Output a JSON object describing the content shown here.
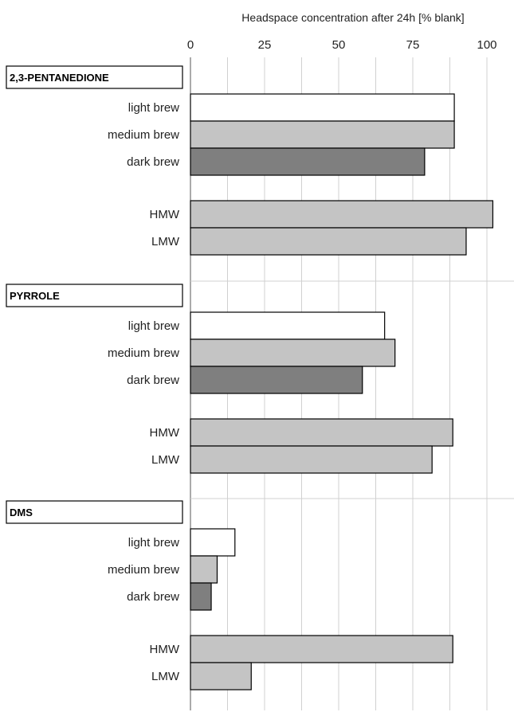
{
  "chart_data": {
    "type": "bar",
    "orientation": "horizontal",
    "title": "",
    "xlabel": "Headspace concentration after 24h [% blank]",
    "xlim": [
      0,
      110
    ],
    "xticks": [
      0,
      25,
      50,
      75,
      100
    ],
    "xtick_labels": [
      "0",
      "25",
      "50",
      "75",
      "100"
    ],
    "grid": "vertical, every 12.5",
    "colors": {
      "light brew": "#ffffff",
      "medium brew": "#c4c4c4",
      "dark brew": "#7f7f7f",
      "HMW": "#c4c4c4",
      "LMW": "#c4c4c4"
    },
    "groups": [
      {
        "name": "2,3-PENTANEDIONE",
        "bars": [
          {
            "label": "light brew",
            "value": 89
          },
          {
            "label": "medium brew",
            "value": 89
          },
          {
            "label": "dark brew",
            "value": 79
          },
          {
            "label": "HMW",
            "value": 102
          },
          {
            "label": "LMW",
            "value": 93
          }
        ]
      },
      {
        "name": "PYRROLE",
        "bars": [
          {
            "label": "light brew",
            "value": 65.5
          },
          {
            "label": "medium brew",
            "value": 69
          },
          {
            "label": "dark brew",
            "value": 58
          },
          {
            "label": "HMW",
            "value": 88.5
          },
          {
            "label": "LMW",
            "value": 81.5
          }
        ]
      },
      {
        "name": "DMS",
        "bars": [
          {
            "label": "light brew",
            "value": 15
          },
          {
            "label": "medium brew",
            "value": 9
          },
          {
            "label": "dark brew",
            "value": 7
          },
          {
            "label": "HMW",
            "value": 88.5
          },
          {
            "label": "LMW",
            "value": 20.5
          }
        ]
      }
    ]
  }
}
